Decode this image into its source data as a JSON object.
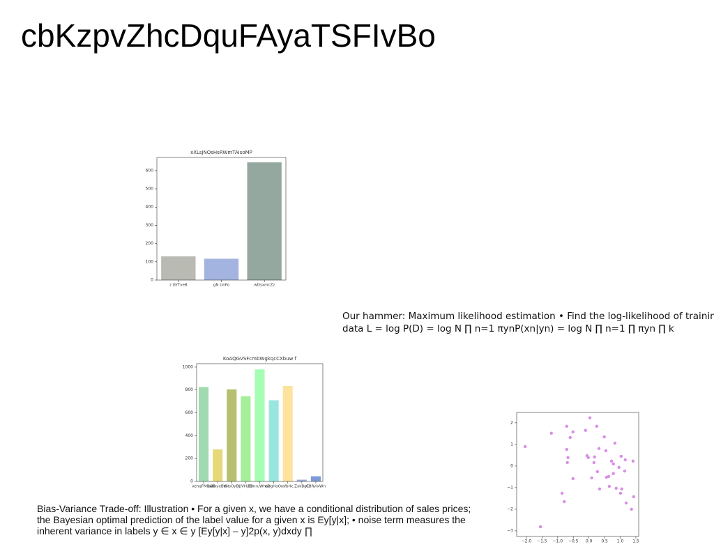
{
  "title": "cbKzpvZhcDquFAyaTSFIvBo",
  "paragraphs": [
    "Our hammer: Maximum likelihood estimation • Find the log-likelihood of training data L = log P(D) = log N ∏ n=1 πynP(xn|yn) = log N ∏ n=1 ∏ πyn ∏ k",
    "Bias-Variance Trade-off: Illustration • For a given x, we have a conditional distribution of sales prices; the Bayesian optimal prediction of the label value for a given x is Ey[y|x]; • noise term measures the inherent variance in labels y ∈ x ∈ y [Ey[y|x] – y]2p(x, y)dxdy ∏"
  ],
  "chart_data": [
    {
      "type": "bar",
      "title": "xXLsjNOsHsRWmTAIsoMP",
      "categories": [
        "z GYTveB",
        "gN UnFo",
        "wDsxmcZz"
      ],
      "values": [
        130,
        117,
        645
      ],
      "colors": [
        "#b9bab2",
        "#a3b4e0",
        "#95a8a0"
      ],
      "ylim": [
        0,
        672
      ],
      "yticks": [
        0,
        100,
        200,
        300,
        400,
        500,
        600
      ]
    },
    {
      "type": "bar",
      "title": "KoAQGVSFcmbWgkqcCXbuw f",
      "categories": [
        "xehqFMBwB",
        "aBIkyeBW",
        "eNsOyBJ",
        "UVHjBS",
        "BmruWhao",
        "eDgHoOr",
        "afbHc",
        "ZxkBgC",
        "CBRylxWn"
      ],
      "values": [
        825,
        280,
        805,
        745,
        980,
        710,
        835,
        15,
        45
      ],
      "colors": [
        "#a0dab0",
        "#e6d97a",
        "#b5bf6e",
        "#a5ee9a",
        "#a6fdb4",
        "#99e6de",
        "#fde39d",
        "#9aacde",
        "#7d99d8"
      ],
      "ylim": [
        0,
        1030
      ],
      "yticks": [
        0,
        200,
        400,
        600,
        800,
        1000
      ]
    },
    {
      "type": "scatter",
      "color": "#d98ee6",
      "x": [
        -2.04,
        -1.55,
        -1.2,
        -0.86,
        -0.79,
        -0.71,
        -0.71,
        -0.69,
        -0.67,
        -0.6,
        -0.51,
        -0.51,
        -0.11,
        -0.06,
        -0.02,
        0.03,
        0.09,
        0.16,
        0.18,
        0.25,
        0.27,
        0.32,
        0.34,
        0.49,
        0.54,
        0.56,
        0.63,
        0.65,
        0.72,
        0.78,
        0.78,
        0.83,
        0.87,
        0.96,
        1.01,
        1.03,
        1.05,
        1.14,
        1.16,
        1.19,
        1.36,
        1.41,
        1.43
      ],
      "values": [
        0.9,
        -2.81,
        1.52,
        -1.26,
        -1.65,
        1.84,
        0.77,
        0.16,
        0.39,
        1.32,
        1.58,
        -0.58,
        1.65,
        0.48,
        0.39,
        2.23,
        -0.55,
        0.16,
        0.42,
        1.84,
        -0.26,
        0.81,
        -1.06,
        1.35,
        0.71,
        -0.52,
        -0.48,
        -0.94,
        0.23,
        0.1,
        -0.35,
        1.06,
        -1.03,
        -0.06,
        -1.26,
        0.45,
        -1.06,
        -0.23,
        0.29,
        -1.71,
        -2.0,
        0.23,
        -1.42
      ],
      "xlim": [
        -2.31,
        1.59
      ],
      "xticks": [
        {
          "value": -2,
          "label": "−2.0"
        },
        {
          "value": -1.5,
          "label": "−1.5"
        },
        {
          "value": -1,
          "label": "−1.0"
        },
        {
          "value": -0.5,
          "label": "−0.5"
        },
        {
          "value": 0,
          "label": "0.0"
        },
        {
          "value": 0.5,
          "label": "0.5"
        },
        {
          "value": 1,
          "label": "1.0"
        },
        {
          "value": 1.5,
          "label": "1.5"
        }
      ],
      "ylim": [
        -3.26,
        2.48
      ],
      "yticks": [
        {
          "value": -3,
          "label": "−3"
        },
        {
          "value": -2,
          "label": "−2"
        },
        {
          "value": -1,
          "label": "−1"
        },
        0,
        1,
        2
      ]
    }
  ]
}
